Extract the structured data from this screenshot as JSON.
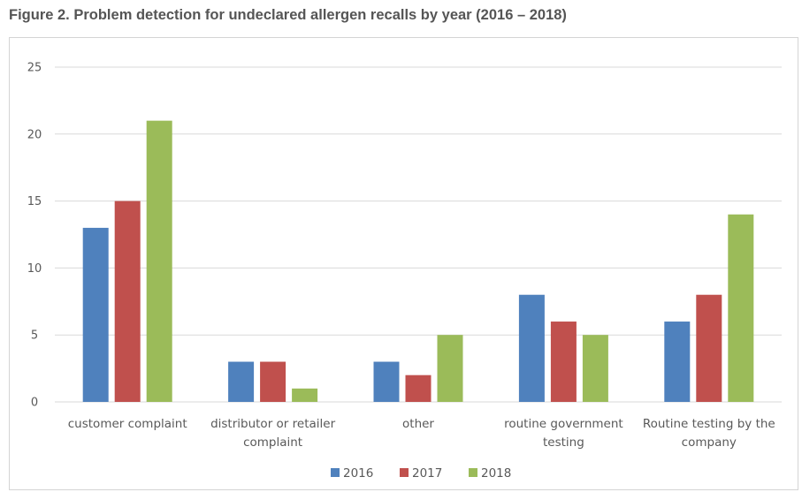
{
  "figure": {
    "title": "Figure 2. Problem detection for undeclared allergen recalls by year (2016 – 2018)"
  },
  "chart_data": {
    "type": "bar",
    "title": "Figure 2. Problem detection for undeclared allergen recalls by year (2016 – 2018)",
    "xlabel": "",
    "ylabel": "",
    "ylim": [
      0,
      25
    ],
    "yticks": [
      0,
      5,
      10,
      15,
      20,
      25
    ],
    "grid": true,
    "legend_position": "bottom",
    "categories": [
      [
        "customer complaint"
      ],
      [
        "distributor or retailer",
        "complaint"
      ],
      [
        "other"
      ],
      [
        "routine government",
        "testing"
      ],
      [
        "Routine testing by the",
        "company"
      ]
    ],
    "series": [
      {
        "name": "2016",
        "color": "#4f81bd",
        "values": [
          13,
          3,
          3,
          8,
          6
        ]
      },
      {
        "name": "2017",
        "color": "#c0504d",
        "values": [
          15,
          3,
          2,
          6,
          8
        ]
      },
      {
        "name": "2018",
        "color": "#9bbb59",
        "values": [
          21,
          1,
          5,
          5,
          14
        ]
      }
    ]
  }
}
